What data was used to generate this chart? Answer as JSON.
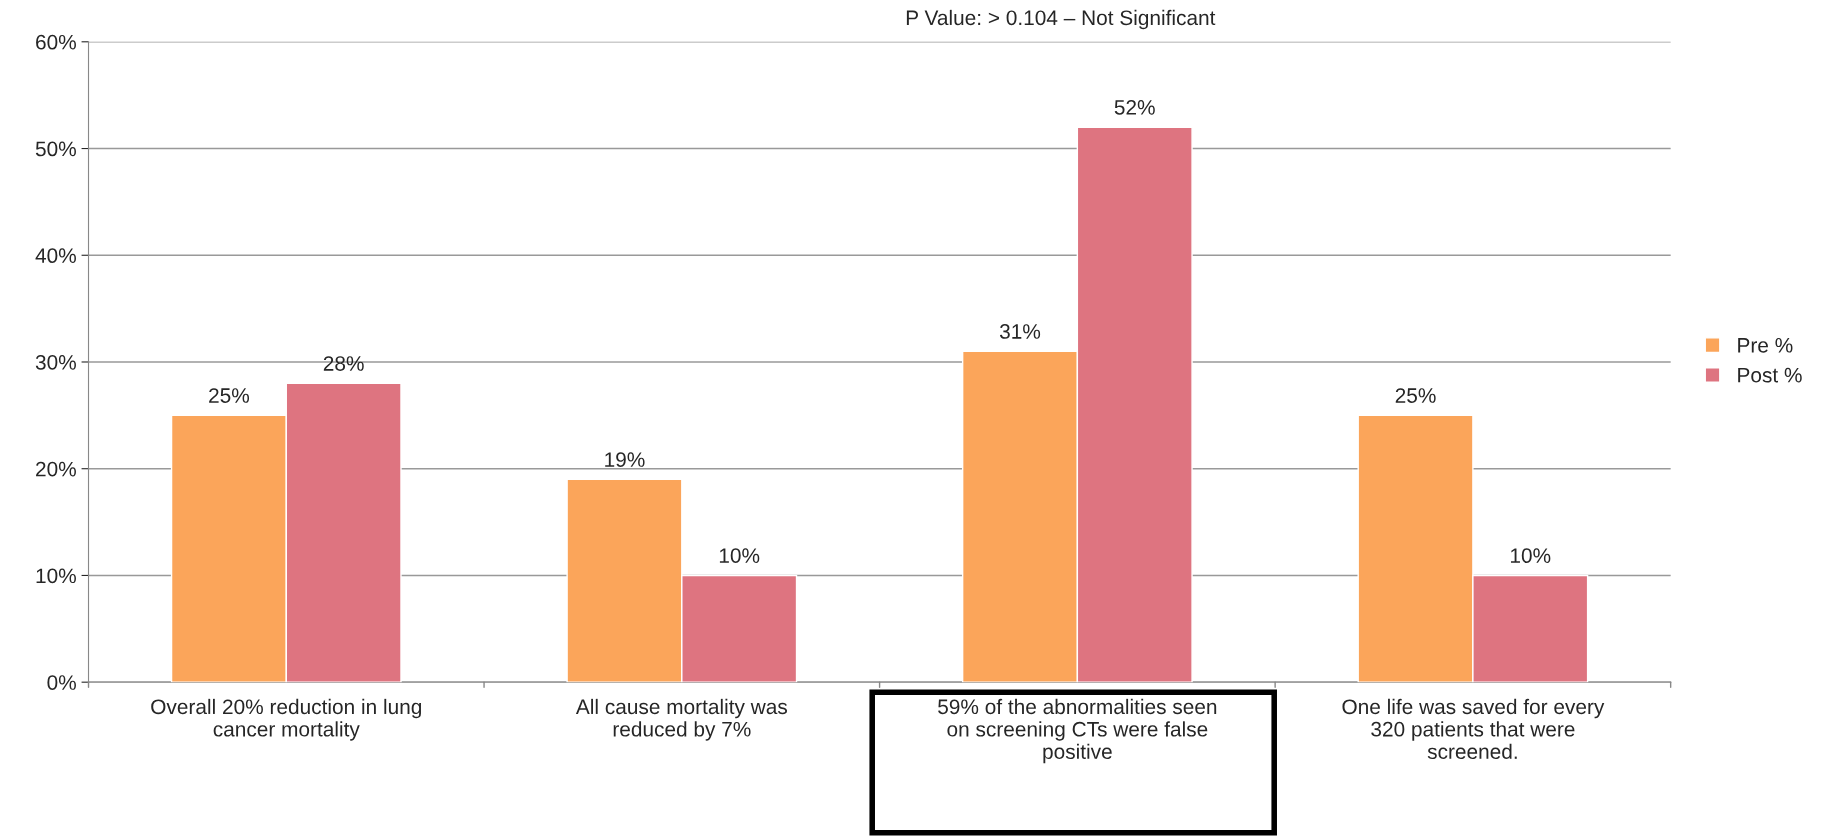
{
  "chart_data": {
    "type": "bar",
    "categories": [
      "Overall 20% reduction in lung cancer mortality",
      "All cause mortality was reduced by 7%",
      "59% of the abnormalities seen on screening CTs were false positive",
      "One life was saved for every 320 patients that were screened."
    ],
    "series": [
      {
        "name": "Pre %",
        "color": "#fba55a",
        "values": [
          25,
          19,
          31,
          25
        ],
        "value_labels": [
          "25%",
          "19%",
          "31%",
          "25%"
        ]
      },
      {
        "name": "Post %",
        "color": "#de7480",
        "values": [
          28,
          10,
          52,
          10
        ],
        "value_labels": [
          "28%",
          "10%",
          "52%",
          "10%"
        ]
      }
    ],
    "ylim": [
      0,
      60
    ],
    "yticks": [
      {
        "value": 0,
        "label": "0%"
      },
      {
        "value": 10,
        "label": "10%"
      },
      {
        "value": 20,
        "label": "20%"
      },
      {
        "value": 30,
        "label": "30%"
      },
      {
        "value": 40,
        "label": "40%"
      },
      {
        "value": 50,
        "label": "50%"
      },
      {
        "value": 60,
        "label": "60%"
      }
    ],
    "grid": "y",
    "legend": "right",
    "annotations": [
      "P Value: > 0.104 – Not Significant"
    ]
  }
}
